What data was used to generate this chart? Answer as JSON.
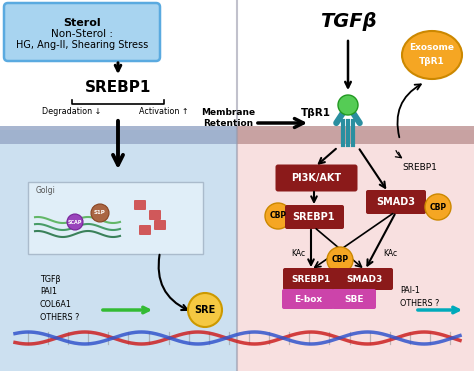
{
  "bg_left": "#cce0f0",
  "bg_right": "#f8e0e0",
  "sterol_box_color": "#a8d4f0",
  "sterol_box_edge": "#5aaae0",
  "dark_red": "#8B1A1A",
  "magenta": "#cc44aa",
  "gold": "#f5a623",
  "teal": "#2a8fa0",
  "green": "#33bb33",
  "teal_cyan": "#00aabb",
  "sterol_line1": "Sterol",
  "sterol_line2": "Non-Sterol :",
  "sterol_line3": "HG, Ang-II, Shearing Stress",
  "membrane_retention": "Membrane\nRetention",
  "tgfb": "TGFβ",
  "tbr1": "TβR1",
  "exosome_l1": "Exosome",
  "exosome_l2": "TβR1",
  "srebp1_big": "SREBP1",
  "degradation": "Degradation ↓",
  "activation": "Activation ↑",
  "pi3k_akt": "PI3K/AKT",
  "smad3": "SMAD3",
  "cbp": "CBP",
  "srebp1_sm": "SREBP1",
  "smad3_sm": "SMAD3",
  "ebox": "E-box",
  "sbe": "SBE",
  "sre": "SRE",
  "kac": "KAc",
  "golgi": "Golgi",
  "tgfb_list": "TGFβ\nPAI1\nCOL6A1\nOTHERS ?",
  "pai1_list": "PAI-1\nOTHERS ?",
  "srebp1_right": "SREBP1"
}
